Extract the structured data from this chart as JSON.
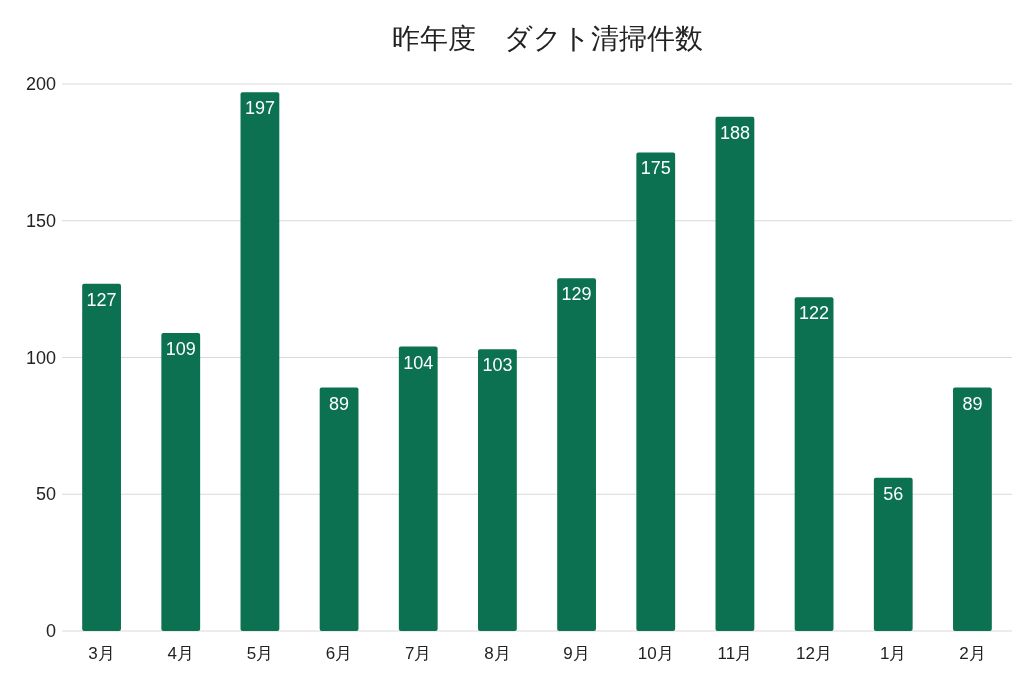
{
  "chart_data": {
    "type": "bar",
    "title": "昨年度　ダクト清掃件数",
    "categories": [
      "3月",
      "4月",
      "5月",
      "6月",
      "7月",
      "8月",
      "9月",
      "10月",
      "11月",
      "12月",
      "1月",
      "2月"
    ],
    "values": [
      127,
      109,
      197,
      89,
      104,
      103,
      129,
      175,
      188,
      122,
      56,
      89
    ],
    "color": "#0b7150",
    "ylim": [
      0,
      200
    ],
    "yticks": [
      0,
      50,
      100,
      150,
      200
    ],
    "grid": "y",
    "data_labels": true
  }
}
